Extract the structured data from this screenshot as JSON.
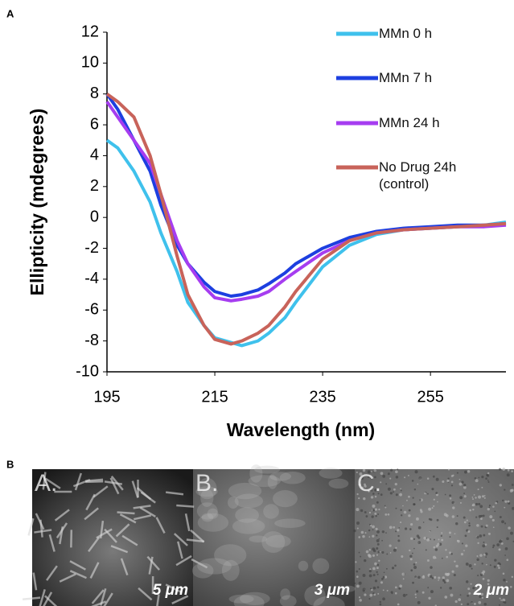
{
  "chart_data": {
    "type": "line",
    "y_label": "Ellipticity (mdegrees)",
    "x_label": "Wavelength (nm)",
    "x": [
      195,
      197,
      200,
      203,
      205,
      208,
      210,
      213,
      215,
      218,
      220,
      223,
      225,
      228,
      230,
      235,
      240,
      245,
      250,
      255,
      260,
      265,
      269
    ],
    "series": [
      {
        "name": "MMn 0 h",
        "color": "#3fc1ec",
        "values": [
          5,
          4.5,
          3,
          1,
          -1,
          -3.5,
          -5.5,
          -7,
          -7.8,
          -8.1,
          -8.3,
          -8,
          -7.5,
          -6.5,
          -5.5,
          -3.2,
          -1.8,
          -1.1,
          -0.8,
          -0.7,
          -0.6,
          -0.5,
          -0.3
        ]
      },
      {
        "name": "MMn 7 h",
        "color": "#1d3fe0",
        "values": [
          8,
          7,
          5,
          3,
          0.8,
          -1.8,
          -3,
          -4.2,
          -4.8,
          -5.1,
          -5,
          -4.7,
          -4.3,
          -3.6,
          -3,
          -2,
          -1.3,
          -0.9,
          -0.7,
          -0.6,
          -0.5,
          -0.5,
          -0.4
        ]
      },
      {
        "name": "MMn 24 h",
        "color": "#a63df0",
        "values": [
          7.5,
          6.5,
          5,
          3.5,
          1.5,
          -1.5,
          -3,
          -4.5,
          -5.2,
          -5.4,
          -5.3,
          -5.1,
          -4.8,
          -4,
          -3.5,
          -2.3,
          -1.5,
          -1,
          -0.8,
          -0.7,
          -0.6,
          -0.6,
          -0.5
        ]
      },
      {
        "name": "No Drug 24h (control)",
        "color": "#c8635a",
        "values": [
          8,
          7.5,
          6.5,
          4,
          1.5,
          -2.5,
          -5,
          -7,
          -7.9,
          -8.2,
          -8,
          -7.5,
          -7,
          -5.8,
          -4.8,
          -2.7,
          -1.5,
          -1,
          -0.8,
          -0.7,
          -0.6,
          -0.5,
          -0.4
        ]
      }
    ],
    "xlim": [
      195,
      269
    ],
    "xticks": [
      195,
      215,
      235,
      255
    ],
    "ylim": [
      -10,
      12
    ],
    "yticks": [
      -10,
      -8,
      -6,
      -4,
      -2,
      0,
      2,
      4,
      6,
      8,
      10,
      12
    ],
    "grid": false,
    "legend": "top-right"
  },
  "figure": {
    "panel_a": "A",
    "panel_b": "B",
    "images": [
      {
        "label": "A.",
        "scale": "5 μm"
      },
      {
        "label": "B.",
        "scale": "3 μm"
      },
      {
        "label": "C.",
        "scale": "2 μm"
      }
    ]
  }
}
